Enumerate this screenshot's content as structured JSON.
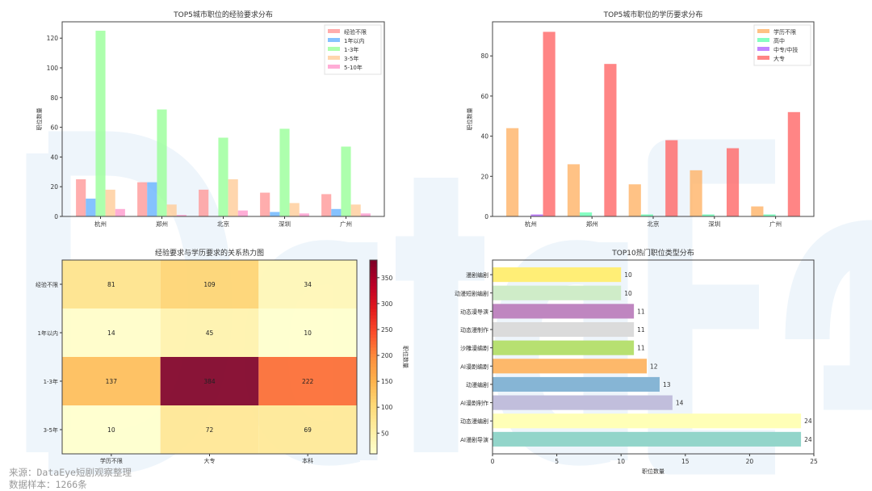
{
  "watermark": "DataEye",
  "footer": {
    "source": "来源：DataEye短剧观察整理",
    "sample": "数据样本：1266条"
  },
  "chart_data": [
    {
      "type": "bar",
      "title": "TOP5城市职位的经验要求分布",
      "ylabel": "职位数量",
      "xlabel": "",
      "ylim": [
        0,
        131
      ],
      "yticks": [
        0,
        20,
        40,
        60,
        80,
        100,
        120
      ],
      "legend": "top-right",
      "categories": [
        "杭州",
        "郑州",
        "北京",
        "深圳",
        "广州"
      ],
      "series": [
        {
          "name": "经验不限",
          "color": "#ff9999",
          "values": [
            25,
            23,
            18,
            16,
            15
          ]
        },
        {
          "name": "1年以内",
          "color": "#66b3ff",
          "values": [
            12,
            23,
            0,
            3,
            5
          ]
        },
        {
          "name": "1-3年",
          "color": "#99ff99",
          "values": [
            125,
            72,
            53,
            59,
            47
          ]
        },
        {
          "name": "3-5年",
          "color": "#ffcc99",
          "values": [
            18,
            8,
            25,
            9,
            8
          ]
        },
        {
          "name": "5-10年",
          "color": "#ff99cc",
          "values": [
            5,
            1,
            4,
            2,
            2
          ]
        }
      ]
    },
    {
      "type": "bar",
      "title": "TOP5城市职位的学历要求分布",
      "ylabel": "职位数量",
      "xlabel": "",
      "ylim": [
        0,
        97
      ],
      "yticks": [
        0,
        20,
        40,
        60,
        80
      ],
      "legend": "top-right",
      "categories": [
        "杭州",
        "郑州",
        "北京",
        "深圳",
        "广州"
      ],
      "series": [
        {
          "name": "学历不限",
          "color": "#ffb366",
          "values": [
            44,
            26,
            16,
            23,
            5
          ]
        },
        {
          "name": "高中",
          "color": "#66ffb3",
          "values": [
            0,
            2,
            1,
            1,
            1
          ]
        },
        {
          "name": "中专/中技",
          "color": "#b366ff",
          "values": [
            1,
            0,
            0,
            0,
            0
          ]
        },
        {
          "name": "大专",
          "color": "#ff6666",
          "values": [
            92,
            76,
            38,
            34,
            52
          ]
        }
      ]
    },
    {
      "type": "heatmap",
      "title": "经验要求与学历要求的关系热力图",
      "colorbar_label": "职位数量",
      "colormap": "YlOrRd",
      "vrange": [
        10,
        384
      ],
      "colorbar_ticks": [
        50,
        100,
        150,
        200,
        250,
        300,
        350
      ],
      "x": [
        "学历不限",
        "大专",
        "本科"
      ],
      "y": [
        "经验不限",
        "1年以内",
        "1-3年",
        "3-5年"
      ],
      "values": [
        [
          81,
          109,
          34
        ],
        [
          14,
          45,
          10
        ],
        [
          137,
          384,
          222
        ],
        [
          10,
          72,
          69
        ]
      ]
    },
    {
      "type": "bar",
      "orientation": "horizontal",
      "title": "TOP10热门职位类型分布",
      "xlabel": "职位数量",
      "xlim": [
        0,
        25
      ],
      "xticks": [
        0,
        5,
        10,
        15,
        20,
        25
      ],
      "categories": [
        "漫剧编剧",
        "动漫短剧编剧",
        "动态漫导演",
        "动态漫制作",
        "沙雕漫编剧",
        "AI漫剧编剧",
        "动漫编剧",
        "AI漫剧制作",
        "动态漫编剧",
        "AI漫剧导演"
      ],
      "values": [
        10,
        10,
        11,
        11,
        11,
        12,
        13,
        14,
        24,
        24
      ],
      "colors": [
        "#ffed6f",
        "#ccebc5",
        "#bc80bd",
        "#d9d9d9",
        "#b3de69",
        "#fdb462",
        "#80b1d3",
        "#bebada",
        "#ffffb3",
        "#8dd3c7"
      ]
    }
  ]
}
